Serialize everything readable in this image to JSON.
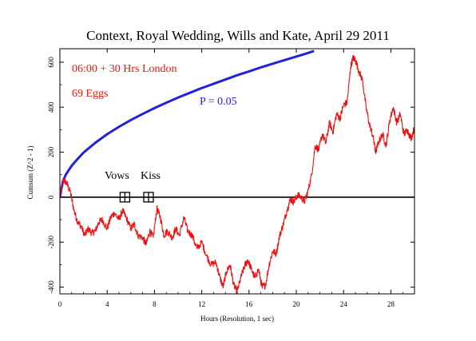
{
  "chart_data": {
    "type": "line",
    "title": "Context, Royal Wedding, Wills and Kate, April 29 2011",
    "xlabel": "Hours (Resolution, 1 sec)",
    "ylabel": "Cumsum (Z^2 - 1)",
    "xlim": [
      0,
      30
    ],
    "ylim": [
      -430,
      660
    ],
    "x_ticks": [
      0,
      4,
      8,
      12,
      16,
      20,
      24,
      28
    ],
    "y_ticks": [
      -400,
      -200,
      0,
      200,
      400,
      600
    ],
    "x_tick_labels": [
      "0",
      "4",
      "8",
      "12",
      "16",
      "20",
      "24",
      "28"
    ],
    "y_tick_labels": [
      "-400",
      "-200",
      "0",
      "200",
      "400",
      "600"
    ],
    "annotations": {
      "window": "06:00 + 30 Hrs London",
      "eggs": "69 Eggs",
      "p_label": "P = 0.05",
      "vows": "Vows",
      "kiss": "Kiss"
    },
    "event_markers": [
      {
        "name": "Vows",
        "x": 5.5,
        "y": 0
      },
      {
        "name": "Kiss",
        "x": 7.5,
        "y": 0
      }
    ],
    "colors": {
      "cumsum": "#ee1111",
      "p05": "#2222dd",
      "baseline": "#000000"
    },
    "series": [
      {
        "name": "",
        "role": "cumsum",
        "x": [
          0,
          0.3,
          0.6,
          0.9,
          1.2,
          1.5,
          1.8,
          2.1,
          2.4,
          2.7,
          3.0,
          3.3,
          3.6,
          4.0,
          4.3,
          4.6,
          5.0,
          5.3,
          5.6,
          6.0,
          6.3,
          6.6,
          7.0,
          7.3,
          7.6,
          7.9,
          8.2,
          8.5,
          8.8,
          9.1,
          9.5,
          9.8,
          10.1,
          10.5,
          10.8,
          11.2,
          11.6,
          12.0,
          12.4,
          12.8,
          13.2,
          13.5,
          13.8,
          14.1,
          14.4,
          14.7,
          15.0,
          15.3,
          15.6,
          15.9,
          16.2,
          16.5,
          16.8,
          17.1,
          17.4,
          17.7,
          18.0,
          18.3,
          18.6,
          18.9,
          19.2,
          19.5,
          19.8,
          20.1,
          20.4,
          20.7,
          21.0,
          21.3,
          21.6,
          21.9,
          22.2,
          22.5,
          22.8,
          23.1,
          23.4,
          23.7,
          24.0,
          24.3,
          24.6,
          24.8,
          25.0,
          25.3,
          25.6,
          25.9,
          26.2,
          26.5,
          26.7,
          27.0,
          27.3,
          27.6,
          27.9,
          28.2,
          28.5,
          28.8,
          29.1,
          29.4,
          29.7,
          30.0
        ],
        "y": [
          0,
          80,
          60,
          20,
          -60,
          -110,
          -130,
          -170,
          -140,
          -160,
          -150,
          -110,
          -100,
          -140,
          -90,
          -70,
          -100,
          -60,
          -90,
          -140,
          -120,
          -170,
          -180,
          -210,
          -150,
          -180,
          -50,
          -90,
          -170,
          -150,
          -180,
          -140,
          -170,
          -90,
          -150,
          -170,
          -230,
          -200,
          -260,
          -300,
          -290,
          -350,
          -400,
          -330,
          -300,
          -390,
          -420,
          -360,
          -310,
          -280,
          -320,
          -360,
          -320,
          -400,
          -390,
          -300,
          -240,
          -250,
          -170,
          -120,
          -60,
          -10,
          -20,
          10,
          0,
          -20,
          30,
          100,
          230,
          210,
          280,
          240,
          330,
          290,
          370,
          350,
          410,
          420,
          580,
          620,
          610,
          560,
          520,
          400,
          320,
          270,
          200,
          250,
          280,
          230,
          340,
          400,
          330,
          370,
          280,
          300,
          260,
          310
        ]
      },
      {
        "name": "",
        "role": "p05",
        "x": [
          0,
          0.25,
          0.5,
          1,
          1.5,
          2,
          3,
          4,
          5,
          6,
          7,
          8,
          9,
          10,
          11,
          12,
          13,
          14,
          15,
          16,
          17,
          18,
          19,
          20,
          21,
          21.5
        ],
        "y": [
          0,
          70,
          100,
          140,
          170,
          198,
          242,
          280,
          313,
          343,
          370,
          396,
          420,
          443,
          464,
          485,
          504,
          523,
          542,
          559,
          577,
          593,
          609,
          625,
          641,
          650
        ]
      }
    ]
  }
}
